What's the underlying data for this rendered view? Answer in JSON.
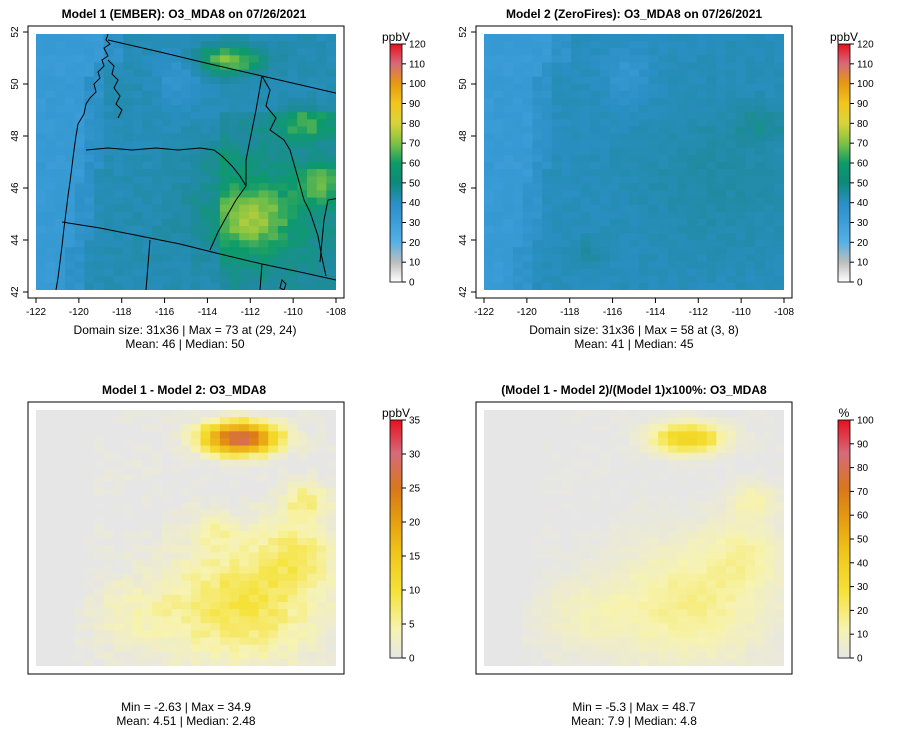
{
  "chart_data": [
    {
      "type": "heatmap",
      "title": "Model 1 (EMBER): O3_MDA8 on 07/26/2021",
      "grid_size": [
        31,
        36
      ],
      "x_ticks": [
        "-122",
        "-120",
        "-118",
        "-116",
        "-114",
        "-112",
        "-110",
        "-108"
      ],
      "y_ticks": [
        "42",
        "44",
        "46",
        "48",
        "50",
        "52"
      ],
      "xlim": [
        -122,
        -108
      ],
      "ylim": [
        42,
        52
      ],
      "colorbar": {
        "unit": "ppbV",
        "ticks": [
          "0",
          "10",
          "20",
          "30",
          "40",
          "50",
          "60",
          "70",
          "80",
          "90",
          "100",
          "110",
          "120"
        ],
        "range": [
          0,
          120
        ]
      },
      "stats": [
        "Domain size: 31x36 | Max = 73 at (29, 24)",
        "Mean: 46 | Median: 50"
      ],
      "axes": true,
      "field": "m1"
    },
    {
      "type": "heatmap",
      "title": "Model 2 (ZeroFires): O3_MDA8 on 07/26/2021",
      "grid_size": [
        31,
        36
      ],
      "x_ticks": [
        "-122",
        "-120",
        "-118",
        "-116",
        "-114",
        "-112",
        "-110",
        "-108"
      ],
      "y_ticks": [
        "42",
        "44",
        "46",
        "48",
        "50",
        "52"
      ],
      "xlim": [
        -122,
        -108
      ],
      "ylim": [
        42,
        52
      ],
      "colorbar": {
        "unit": "ppbV",
        "ticks": [
          "0",
          "10",
          "20",
          "30",
          "40",
          "50",
          "60",
          "70",
          "80",
          "90",
          "100",
          "110",
          "120"
        ],
        "range": [
          0,
          120
        ]
      },
      "stats": [
        "Domain size: 31x36 | Max = 58 at (3, 8)",
        "Mean: 41 | Median: 45"
      ],
      "axes": true,
      "field": "m2"
    },
    {
      "type": "heatmap",
      "title": "Model 1 - Model 2: O3_MDA8",
      "grid_size": [
        31,
        36
      ],
      "colorbar": {
        "unit": "ppbV",
        "ticks": [
          "0",
          "5",
          "10",
          "15",
          "20",
          "25",
          "30",
          "35"
        ],
        "range": [
          0,
          35
        ]
      },
      "stats": [
        "Min = -2.63 | Max = 34.9",
        "Mean: 4.51 | Median: 2.48"
      ],
      "axes": false,
      "field": "diff"
    },
    {
      "type": "heatmap",
      "title": "(Model 1 - Model 2)/(Model 1)x100%: O3_MDA8",
      "grid_size": [
        31,
        36
      ],
      "colorbar": {
        "unit": "%",
        "ticks": [
          "0",
          "10",
          "20",
          "30",
          "40",
          "50",
          "60",
          "70",
          "80",
          "90",
          "100"
        ],
        "range": [
          0,
          100
        ]
      },
      "stats": [
        "Min = -5.3 | Max = 48.7",
        "Mean: 7.9 | Median: 4.8"
      ],
      "axes": false,
      "field": "pct"
    }
  ],
  "colors": {
    "o3_scale": [
      "#e6e6e6",
      "#bdbdbd",
      "#56b0e6",
      "#3d9ed9",
      "#2a8fc4",
      "#1f8a9e",
      "#0d9a6a",
      "#7ec243",
      "#d9d33a",
      "#f2c51f",
      "#e69a10",
      "#d95e10",
      "#e0101e"
    ],
    "diff_scale": [
      "#e6e6e6",
      "#f7f3b0",
      "#f5e23a",
      "#f2d21f",
      "#edb41a",
      "#e69a10",
      "#d9771a",
      "#d66a7a",
      "#e8101e"
    ]
  }
}
